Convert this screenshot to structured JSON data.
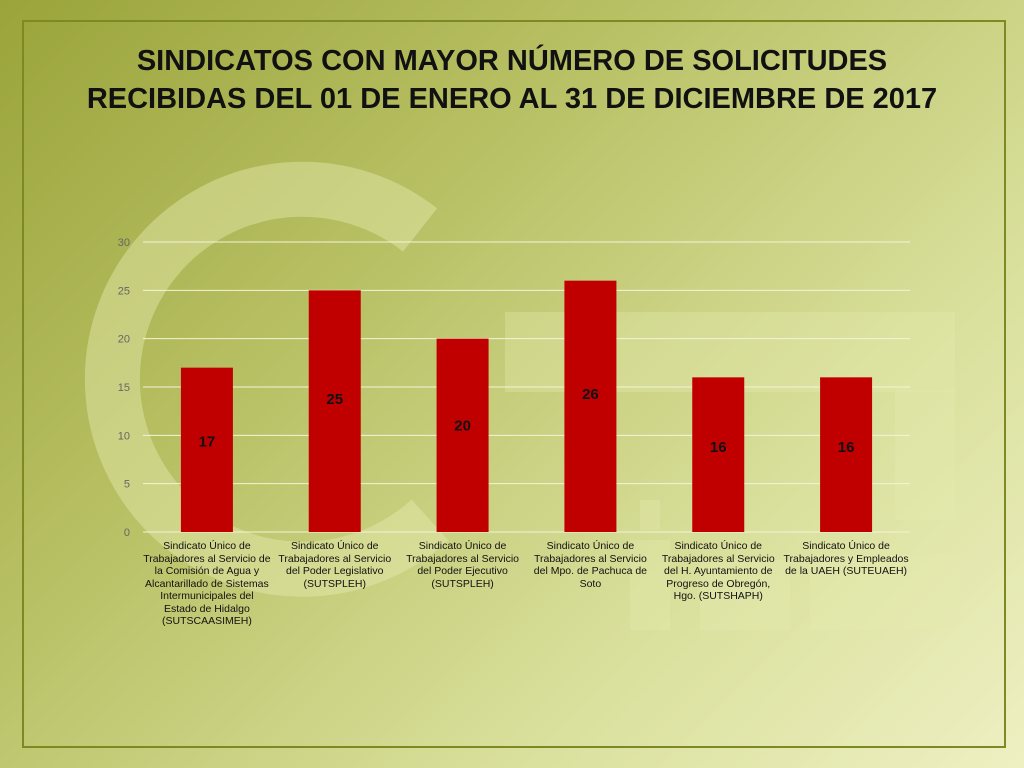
{
  "chart_data": {
    "type": "bar",
    "title": "SINDICATOS CON MAYOR NÚMERO DE SOLICITUDES RECIBIDAS DEL 01 DE ENERO AL 31 DE DICIEMBRE DE 2017",
    "categories": [
      "Sindicato Único de Trabajadores al Servicio de la Comisión de Agua y Alcantarillado de Sistemas Intermunicipales del Estado de Hidalgo (SUTSCAASIMEH)",
      "Sindicato Único de Trabajadores al Servicio del Poder Legislativo (SUTSPLEH)",
      "Sindicato Único de Trabajadores al Servicio del Poder Ejecutivo (SUTSPLEH)",
      "Sindicato Único de Trabajadores al Servicio del Mpo. de Pachuca de Soto",
      "Sindicato Único de Trabajadores al Servicio del H. Ayuntamiento de Progreso de Obregón, Hgo. (SUTSHAPH)",
      "Sindicato Único de Trabajadores y Empleados de la UAEH (SUTEUAEH)"
    ],
    "values": [
      17,
      25,
      20,
      26,
      16,
      16
    ],
    "yticks": [
      0,
      5,
      10,
      15,
      20,
      25,
      30
    ],
    "ylim": [
      0,
      30
    ],
    "xlabel": "",
    "ylabel": "",
    "grid": true,
    "legend": "none",
    "bar_color": "#c00000",
    "background_color": "#b8c064"
  }
}
